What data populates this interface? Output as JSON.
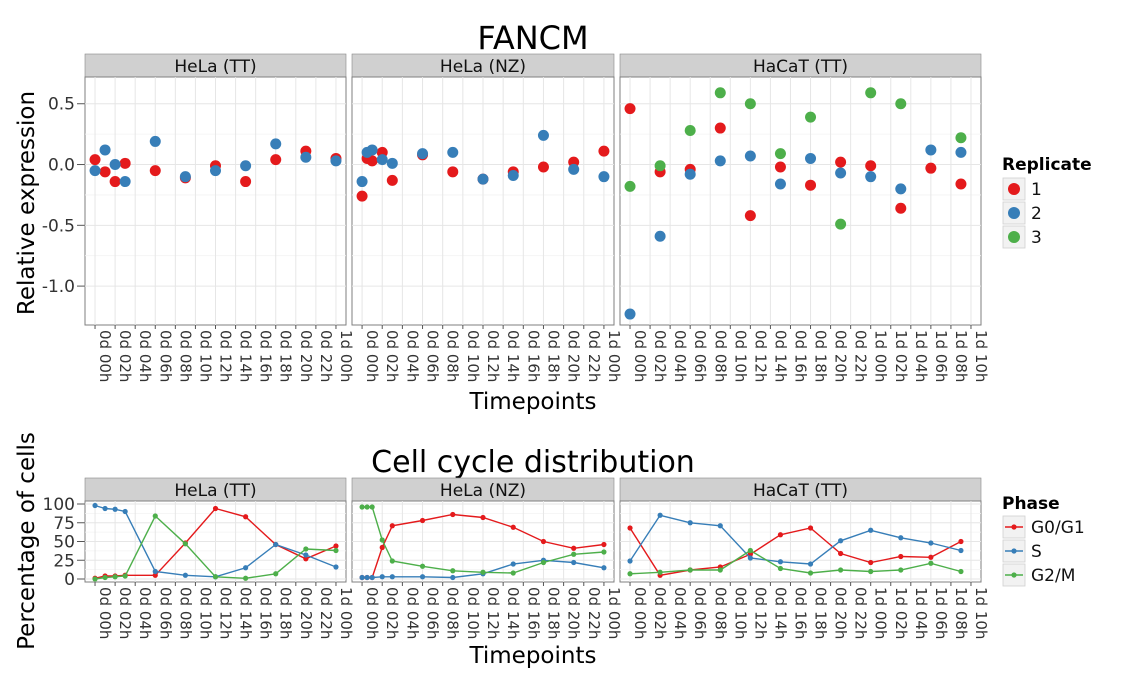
{
  "top": {
    "title": "FANCM",
    "ylabel": "Relative expression",
    "xlabel": "Timepoints",
    "legend_title": "Replicate"
  },
  "bottom": {
    "title": "Cell cycle distribution",
    "ylabel": "Percentage of cells",
    "xlabel": "Timepoints",
    "legend_title": "Phase"
  },
  "chart_data": [
    {
      "type": "scatter",
      "title": "FANCM",
      "xlabel": "Timepoints",
      "ylabel": "Relative expression",
      "ylim": [
        -1.32,
        0.72
      ],
      "yticks": [
        0.5,
        0.0,
        -0.5,
        -1.0
      ],
      "ytick_labels": [
        "0.5",
        "0.0",
        "-0.5",
        "-1.0"
      ],
      "grid": true,
      "legend_placement": "right",
      "series_meta": [
        {
          "name": "1",
          "color": "#e41a1c"
        },
        {
          "name": "2",
          "color": "#377eb8"
        },
        {
          "name": "3",
          "color": "#4daf4a"
        }
      ],
      "panels": [
        {
          "name": "HeLa (TT)",
          "tick_labels": [
            "0d 00h",
            "0d 02h",
            "0d 04h",
            "0d 06h",
            "0d 08h",
            "0d 10h",
            "0d 12h",
            "0d 14h",
            "0d 16h",
            "0d 18h",
            "0d 20h",
            "0d 22h",
            "1d 00h"
          ],
          "series": [
            {
              "name": "1",
              "x": [
                0,
                0.5,
                1,
                1.5,
                3,
                4.5,
                6,
                7.5,
                9,
                10.5,
                12
              ],
              "y": [
                0.04,
                -0.06,
                -0.14,
                0.01,
                -0.05,
                -0.11,
                -0.01,
                -0.14,
                0.04,
                0.11,
                0.05
              ]
            },
            {
              "name": "2",
              "x": [
                0,
                0.5,
                1,
                1.5,
                3,
                4.5,
                6,
                7.5,
                9,
                10.5,
                12
              ],
              "y": [
                -0.05,
                0.12,
                0.0,
                -0.14,
                0.19,
                -0.1,
                -0.05,
                -0.01,
                0.17,
                0.06,
                0.03
              ]
            }
          ]
        },
        {
          "name": "HeLa (NZ)",
          "tick_labels": [
            "0d 00h",
            "0d 02h",
            "0d 04h",
            "0d 06h",
            "0d 08h",
            "0d 10h",
            "0d 12h",
            "0d 14h",
            "0d 16h",
            "0d 18h",
            "0d 20h",
            "0d 22h",
            "1d 00h"
          ],
          "series": [
            {
              "name": "1",
              "x": [
                0,
                0.25,
                0.5,
                1,
                1.5,
                3,
                4.5,
                6,
                7.5,
                9,
                10.5,
                12
              ],
              "y": [
                -0.26,
                0.05,
                0.03,
                0.1,
                -0.13,
                0.08,
                -0.06,
                -0.12,
                -0.06,
                -0.02,
                0.02,
                0.11
              ]
            },
            {
              "name": "2",
              "x": [
                0,
                0.25,
                0.5,
                1,
                1.5,
                3,
                4.5,
                6,
                7.5,
                9,
                10.5,
                12
              ],
              "y": [
                -0.14,
                0.1,
                0.12,
                0.04,
                0.01,
                0.09,
                0.1,
                -0.12,
                -0.09,
                0.24,
                -0.04,
                -0.1
              ]
            }
          ]
        },
        {
          "name": "HaCaT (TT)",
          "tick_labels": [
            "0d 00h",
            "0d 02h",
            "0d 04h",
            "0d 06h",
            "0d 08h",
            "0d 10h",
            "0d 12h",
            "0d 14h",
            "0d 16h",
            "0d 18h",
            "0d 20h",
            "0d 22h",
            "1d 00h",
            "1d 02h",
            "1d 04h",
            "1d 06h",
            "1d 08h",
            "1d 10h"
          ],
          "series": [
            {
              "name": "1",
              "x": [
                0,
                1.5,
                3,
                4.5,
                6,
                7.5,
                9,
                10.5,
                12,
                13.5,
                15,
                16.5
              ],
              "y": [
                0.46,
                -0.06,
                -0.04,
                0.3,
                -0.42,
                -0.02,
                -0.17,
                0.02,
                -0.01,
                -0.36,
                -0.03,
                -0.16
              ]
            },
            {
              "name": "2",
              "x": [
                0,
                1.5,
                3,
                4.5,
                6,
                7.5,
                9,
                10.5,
                12,
                13.5,
                15,
                16.5
              ],
              "y": [
                -1.23,
                -0.59,
                -0.08,
                0.03,
                0.07,
                -0.16,
                0.05,
                -0.07,
                -0.1,
                -0.2,
                0.12,
                0.1
              ]
            },
            {
              "name": "3",
              "x": [
                0,
                1.5,
                3,
                4.5,
                6,
                7.5,
                9,
                10.5,
                12,
                13.5,
                15,
                16.5
              ],
              "y": [
                -0.18,
                -0.01,
                0.28,
                0.59,
                0.5,
                0.09,
                0.39,
                -0.49,
                0.59,
                0.5,
                null,
                0.22
              ]
            }
          ]
        }
      ]
    },
    {
      "type": "line",
      "title": "Cell cycle distribution",
      "xlabel": "Timepoints",
      "ylabel": "Percentage of cells",
      "ylim": [
        -4,
        104
      ],
      "yticks": [
        100,
        75,
        50,
        25,
        0
      ],
      "ytick_labels": [
        "100",
        "75",
        "50",
        "25",
        "0"
      ],
      "grid": true,
      "legend_placement": "right",
      "series_meta": [
        {
          "name": "G0/G1",
          "color": "#e41a1c"
        },
        {
          "name": "S",
          "color": "#377eb8"
        },
        {
          "name": "G2/M",
          "color": "#4daf4a"
        }
      ],
      "panels": [
        {
          "name": "HeLa (TT)",
          "tick_labels": [
            "0d 00h",
            "0d 02h",
            "0d 04h",
            "0d 06h",
            "0d 08h",
            "0d 10h",
            "0d 12h",
            "0d 14h",
            "0d 16h",
            "0d 18h",
            "0d 20h",
            "0d 22h",
            "1d 00h"
          ],
          "series": [
            {
              "name": "G0/G1",
              "x": [
                0,
                0.5,
                1,
                1.5,
                3,
                4.5,
                6,
                7.5,
                9,
                10.5,
                12
              ],
              "y": [
                1,
                4,
                4,
                5,
                5,
                48,
                94,
                83,
                46,
                27,
                44
              ]
            },
            {
              "name": "S",
              "x": [
                0,
                0.5,
                1,
                1.5,
                3,
                4.5,
                6,
                7.5,
                9,
                10.5,
                12
              ],
              "y": [
                98,
                94,
                93,
                90,
                10,
                5,
                3,
                15,
                46,
                32,
                16
              ]
            },
            {
              "name": "G2/M",
              "x": [
                0,
                0.5,
                1,
                1.5,
                3,
                4.5,
                6,
                7.5,
                9,
                10.5,
                12
              ],
              "y": [
                0,
                2,
                3,
                4,
                84,
                47,
                3,
                1,
                7,
                40,
                38
              ]
            }
          ]
        },
        {
          "name": "HeLa (NZ)",
          "tick_labels": [
            "0d 00h",
            "0d 02h",
            "0d 04h",
            "0d 06h",
            "0d 08h",
            "0d 10h",
            "0d 12h",
            "0d 14h",
            "0d 16h",
            "0d 18h",
            "0d 20h",
            "0d 22h",
            "1d 00h"
          ],
          "series": [
            {
              "name": "G0/G1",
              "x": [
                0,
                0.25,
                0.5,
                1,
                1.5,
                3,
                4.5,
                6,
                7.5,
                9,
                10.5,
                12
              ],
              "y": [
                2,
                2,
                2,
                42,
                71,
                78,
                86,
                82,
                69,
                50,
                41,
                46
              ]
            },
            {
              "name": "S",
              "x": [
                0,
                0.25,
                0.5,
                1,
                1.5,
                3,
                4.5,
                6,
                7.5,
                9,
                10.5,
                12
              ],
              "y": [
                2,
                2,
                2,
                3,
                3,
                3,
                2,
                7,
                20,
                25,
                22,
                15
              ]
            },
            {
              "name": "G2/M",
              "x": [
                0,
                0.25,
                0.5,
                1,
                1.5,
                3,
                4.5,
                6,
                7.5,
                9,
                10.5,
                12
              ],
              "y": [
                96,
                96,
                96,
                52,
                24,
                17,
                11,
                9,
                8,
                22,
                33,
                36
              ]
            }
          ]
        },
        {
          "name": "HaCaT (TT)",
          "tick_labels": [
            "0d 00h",
            "0d 02h",
            "0d 04h",
            "0d 06h",
            "0d 08h",
            "0d 10h",
            "0d 12h",
            "0d 14h",
            "0d 16h",
            "0d 18h",
            "0d 20h",
            "0d 22h",
            "1d 00h",
            "1d 02h",
            "1d 04h",
            "1d 06h",
            "1d 08h",
            "1d 10h"
          ],
          "series": [
            {
              "name": "G0/G1",
              "x": [
                0,
                1.5,
                3,
                4.5,
                6,
                7.5,
                9,
                10.5,
                12,
                13.5,
                15,
                16.5
              ],
              "y": [
                68,
                5,
                12,
                16,
                33,
                59,
                68,
                34,
                22,
                30,
                29,
                50
              ]
            },
            {
              "name": "S",
              "x": [
                0,
                1.5,
                3,
                4.5,
                6,
                7.5,
                9,
                10.5,
                12,
                13.5,
                15,
                16.5
              ],
              "y": [
                24,
                85,
                75,
                71,
                28,
                23,
                20,
                51,
                65,
                55,
                48,
                38
              ]
            },
            {
              "name": "G2/M",
              "x": [
                0,
                1.5,
                3,
                4.5,
                6,
                7.5,
                9,
                10.5,
                12,
                13.5,
                15,
                16.5
              ],
              "y": [
                7,
                9,
                12,
                12,
                38,
                14,
                8,
                12,
                10,
                12,
                21,
                10
              ]
            }
          ]
        }
      ]
    }
  ]
}
